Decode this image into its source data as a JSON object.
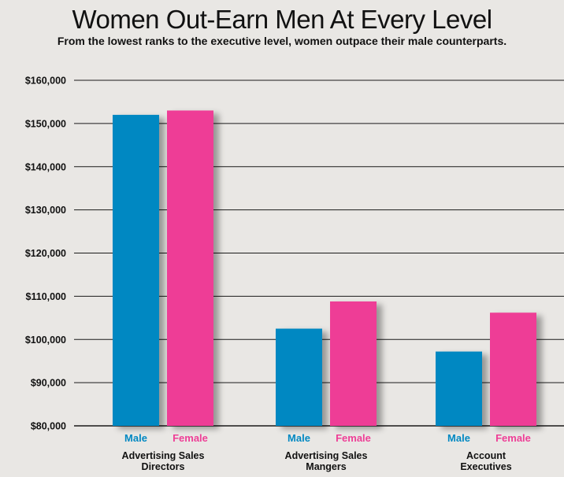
{
  "chart_data": {
    "type": "bar",
    "title": "Women Out-Earn Men At Every Level",
    "subtitle": "From the lowest ranks to the executive level, women outpace their male counterparts.",
    "categories": [
      {
        "line1": "Advertising Sales",
        "line2": "Directors"
      },
      {
        "line1": "Advertising Sales",
        "line2": "Mangers"
      },
      {
        "line1": "Account",
        "line2": "Executives"
      }
    ],
    "series": [
      {
        "name": "Male",
        "color": "#0088c2",
        "values": [
          152000,
          102500,
          97200
        ]
      },
      {
        "name": "Female",
        "color": "#ee3e96",
        "values": [
          153000,
          108800,
          106200
        ]
      }
    ],
    "ylim": [
      80000,
      160000
    ],
    "yticks": [
      "$80,000",
      "$90,000",
      "$100,000",
      "$110,000",
      "$120,000",
      "$130,000",
      "$140,000",
      "$150,000",
      "$160,000"
    ],
    "grid": true
  }
}
